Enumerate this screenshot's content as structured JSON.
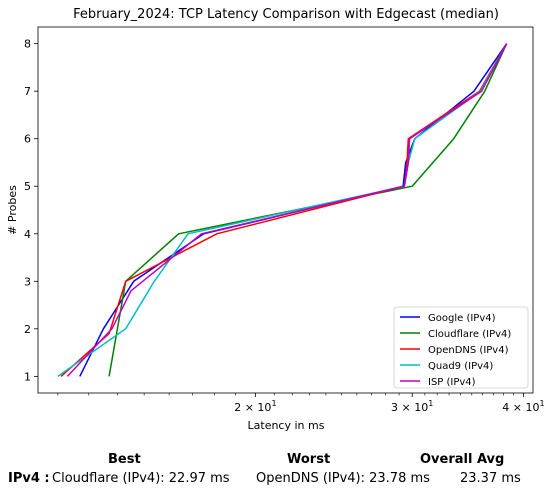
{
  "chart_data": {
    "type": "line",
    "title": "February_2024: TCP Latency Comparison with Edgecast (median)",
    "xlabel": "Latency in ms",
    "ylabel": "# Probes",
    "xscale": "log",
    "xlim": [
      11.4,
      41.0
    ],
    "ylim": [
      0.65,
      8.35
    ],
    "xticks": [
      {
        "value": 20,
        "label": "2 × 10"
      },
      {
        "value": 30,
        "label": "3 × 10"
      },
      {
        "value": 40,
        "label": "4 × 10"
      }
    ],
    "tick_exponent": "1",
    "yticks": [
      1,
      2,
      3,
      4,
      5,
      6,
      7,
      8
    ],
    "legend_position": "lower right",
    "grid": false,
    "series": [
      {
        "name": "Google (IPv4)",
        "color": "#0000ff",
        "points": [
          [
            12.7,
            1
          ],
          [
            13.5,
            2
          ],
          [
            14.6,
            3
          ],
          [
            17.5,
            4
          ],
          [
            29.3,
            5
          ],
          [
            29.5,
            5.5
          ],
          [
            30.2,
            6
          ],
          [
            35.2,
            7
          ],
          [
            38.3,
            8
          ]
        ]
      },
      {
        "name": "Cloudflare (IPv4)",
        "color": "#008000",
        "points": [
          [
            13.7,
            1
          ],
          [
            14.3,
            3
          ],
          [
            16.4,
            4
          ],
          [
            30.0,
            5
          ],
          [
            33.4,
            6
          ],
          [
            36.2,
            7
          ],
          [
            38.3,
            8
          ]
        ]
      },
      {
        "name": "OpenDNS (IPv4)",
        "color": "#ff0000",
        "points": [
          [
            12.1,
            1
          ],
          [
            13.7,
            1.9
          ],
          [
            14.3,
            3
          ],
          [
            18.1,
            4
          ],
          [
            29.4,
            5
          ],
          [
            29.6,
            5.5
          ],
          [
            29.7,
            6
          ],
          [
            35.7,
            7
          ],
          [
            38.3,
            8
          ]
        ]
      },
      {
        "name": "Quad9 (IPv4)",
        "color": "#00bfbf",
        "points": [
          [
            12.0,
            1
          ],
          [
            14.3,
            2
          ],
          [
            15.4,
            3
          ],
          [
            16.8,
            4
          ],
          [
            29.4,
            5
          ],
          [
            29.7,
            5.5
          ],
          [
            30.2,
            6
          ],
          [
            35.8,
            7
          ],
          [
            38.3,
            8
          ]
        ]
      },
      {
        "name": "ISP (IPv4)",
        "color": "#bf00bf",
        "points": [
          [
            12.3,
            1
          ],
          [
            13.8,
            2
          ],
          [
            14.5,
            2.8
          ],
          [
            17.4,
            4
          ],
          [
            29.4,
            5
          ],
          [
            29.7,
            5.5
          ],
          [
            29.8,
            6
          ],
          [
            35.9,
            7
          ],
          [
            38.3,
            8
          ]
        ]
      }
    ]
  },
  "summary": {
    "row_label": "IPv4 :",
    "best_header": "Best",
    "worst_header": "Worst",
    "avg_header": "Overall Avg",
    "best_value": "Cloudflare (IPv4): 22.97 ms",
    "worst_value": "OpenDNS (IPv4): 23.78 ms",
    "avg_value": "23.37 ms"
  }
}
